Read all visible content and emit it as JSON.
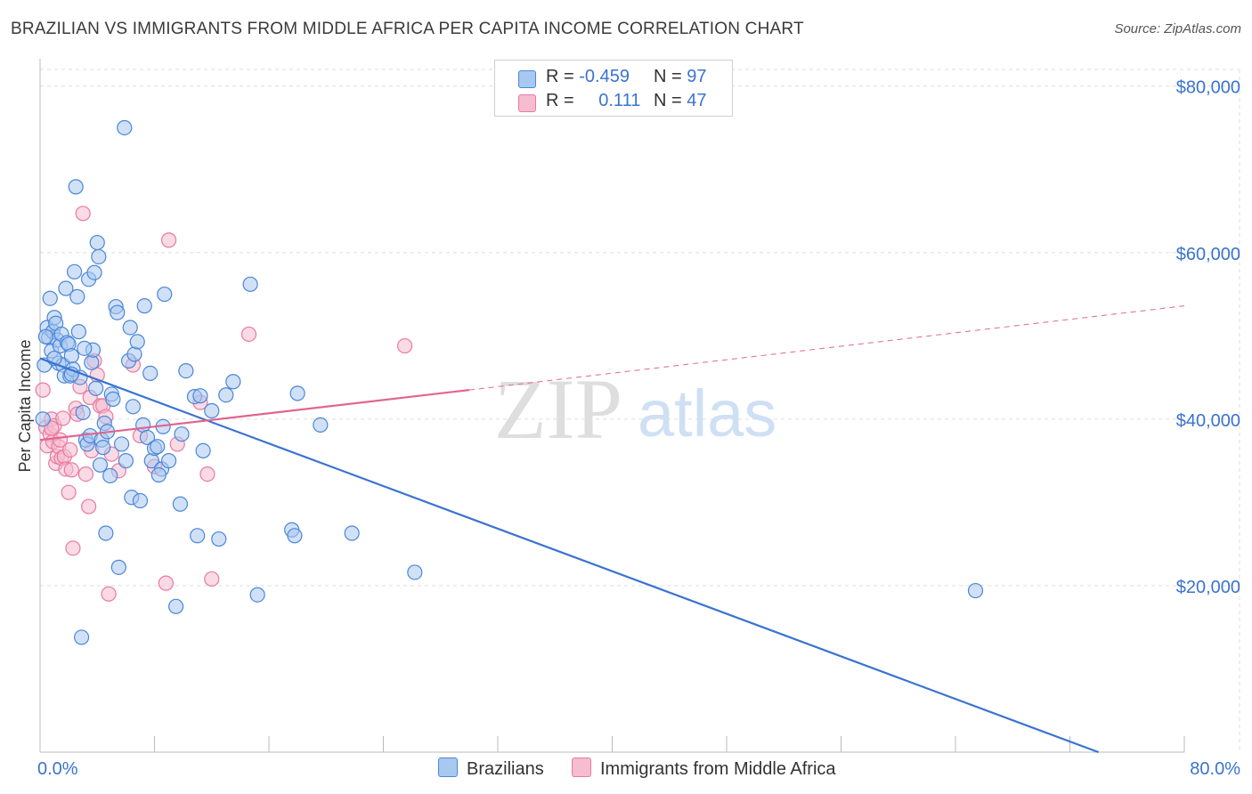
{
  "title": "BRAZILIAN VS IMMIGRANTS FROM MIDDLE AFRICA PER CAPITA INCOME CORRELATION CHART",
  "source": "Source: ZipAtlas.com",
  "watermark": {
    "zip": "ZIP",
    "atlas": "atlas"
  },
  "legend": {
    "r_label": "R =",
    "n_label": "N =",
    "blue": {
      "r": "-0.459",
      "n": "97"
    },
    "pink": {
      "r": "0.111",
      "n": "47"
    }
  },
  "colors": {
    "blue_fill": "#a9c8f0",
    "blue_stroke": "#4a86d8",
    "blue_line": "#3a73d0",
    "pink_fill": "#f6bcd0",
    "pink_stroke": "#e87aa0",
    "pink_line": "#e06590",
    "axis_text": "#3a73d0",
    "grid": "#dddddd"
  },
  "chart_data": {
    "type": "scatter",
    "title": "BRAZILIAN VS IMMIGRANTS FROM MIDDLE AFRICA PER CAPITA INCOME CORRELATION CHART",
    "xlabel": "",
    "ylabel": "Per Capita Income",
    "xlim": [
      0,
      80
    ],
    "ylim": [
      0,
      82000
    ],
    "x_tick_labels": [
      "0.0%",
      "80.0%"
    ],
    "y_ticks": [
      20000,
      40000,
      60000,
      80000
    ],
    "y_tick_labels": [
      "$20,000",
      "$40,000",
      "$60,000",
      "$80,000"
    ],
    "series": [
      {
        "name": "Brazilians",
        "r": -0.459,
        "n": 97,
        "trend": {
          "x": [
            0,
            74
          ],
          "y": [
            47300,
            0
          ]
        },
        "points": [
          [
            0.2,
            40000
          ],
          [
            0.3,
            46500
          ],
          [
            0.5,
            51000
          ],
          [
            0.6,
            49800
          ],
          [
            0.7,
            54500
          ],
          [
            0.8,
            48200
          ],
          [
            0.9,
            50500
          ],
          [
            1.0,
            52200
          ],
          [
            1.1,
            51500
          ],
          [
            1.2,
            49500
          ],
          [
            1.3,
            46700
          ],
          [
            1.4,
            48800
          ],
          [
            1.5,
            50200
          ],
          [
            1.6,
            46500
          ],
          [
            1.7,
            45200
          ],
          [
            1.8,
            55700
          ],
          [
            1.9,
            49200
          ],
          [
            2.0,
            49000
          ],
          [
            2.1,
            45200
          ],
          [
            2.2,
            47600
          ],
          [
            2.3,
            46000
          ],
          [
            2.4,
            57700
          ],
          [
            2.5,
            67900
          ],
          [
            2.6,
            54700
          ],
          [
            2.7,
            50500
          ],
          [
            2.8,
            45000
          ],
          [
            2.9,
            13800
          ],
          [
            3.0,
            40800
          ],
          [
            3.2,
            37500
          ],
          [
            3.3,
            37000
          ],
          [
            3.4,
            56800
          ],
          [
            3.5,
            38000
          ],
          [
            3.6,
            46800
          ],
          [
            3.7,
            48300
          ],
          [
            3.8,
            57600
          ],
          [
            3.9,
            43700
          ],
          [
            4.0,
            61200
          ],
          [
            4.1,
            59500
          ],
          [
            4.2,
            34500
          ],
          [
            4.3,
            37500
          ],
          [
            4.5,
            39500
          ],
          [
            4.6,
            26300
          ],
          [
            4.7,
            38500
          ],
          [
            4.9,
            33200
          ],
          [
            5.0,
            43000
          ],
          [
            5.3,
            53500
          ],
          [
            5.4,
            52800
          ],
          [
            5.5,
            22200
          ],
          [
            5.7,
            37000
          ],
          [
            5.9,
            75000
          ],
          [
            6.0,
            35000
          ],
          [
            6.2,
            47000
          ],
          [
            6.3,
            51000
          ],
          [
            6.4,
            30600
          ],
          [
            6.6,
            47800
          ],
          [
            6.8,
            49300
          ],
          [
            7.0,
            30200
          ],
          [
            7.2,
            39300
          ],
          [
            7.3,
            53600
          ],
          [
            7.5,
            37800
          ],
          [
            7.8,
            35000
          ],
          [
            8.0,
            36500
          ],
          [
            8.2,
            36700
          ],
          [
            8.5,
            34000
          ],
          [
            8.6,
            39100
          ],
          [
            8.7,
            55000
          ],
          [
            9.0,
            35000
          ],
          [
            9.5,
            17500
          ],
          [
            9.8,
            29800
          ],
          [
            10.2,
            45800
          ],
          [
            10.8,
            42700
          ],
          [
            11.0,
            26000
          ],
          [
            11.2,
            42800
          ],
          [
            11.4,
            36200
          ],
          [
            12.5,
            25600
          ],
          [
            13.0,
            42900
          ],
          [
            13.5,
            44500
          ],
          [
            14.7,
            56200
          ],
          [
            15.2,
            18900
          ],
          [
            17.6,
            26700
          ],
          [
            17.8,
            26000
          ],
          [
            18.0,
            43100
          ],
          [
            19.6,
            39300
          ],
          [
            21.8,
            26300
          ],
          [
            26.2,
            21600
          ],
          [
            65.4,
            19400
          ],
          [
            0.4,
            49900
          ],
          [
            1.0,
            47300
          ],
          [
            2.2,
            45400
          ],
          [
            3.1,
            48500
          ],
          [
            4.4,
            36600
          ],
          [
            5.1,
            42400
          ],
          [
            6.5,
            41500
          ],
          [
            7.7,
            45500
          ],
          [
            8.3,
            33300
          ],
          [
            9.9,
            38200
          ],
          [
            12.0,
            41000
          ]
        ]
      },
      {
        "name": "Immigrants from Middle Africa",
        "r": 0.111,
        "n": 47,
        "trend": {
          "x": [
            0,
            30
          ],
          "y": [
            37500,
            43500
          ]
        },
        "trend_extension": {
          "x": [
            30,
            80
          ],
          "y": [
            43500,
            53600
          ]
        },
        "points": [
          [
            0.2,
            43500
          ],
          [
            0.4,
            39000
          ],
          [
            0.5,
            36800
          ],
          [
            0.7,
            38200
          ],
          [
            0.8,
            40000
          ],
          [
            0.9,
            37300
          ],
          [
            1.0,
            39200
          ],
          [
            1.1,
            34700
          ],
          [
            1.2,
            35500
          ],
          [
            1.3,
            36700
          ],
          [
            1.4,
            37500
          ],
          [
            1.5,
            35300
          ],
          [
            1.6,
            40100
          ],
          [
            1.7,
            35500
          ],
          [
            1.8,
            34000
          ],
          [
            2.0,
            31200
          ],
          [
            2.1,
            36300
          ],
          [
            2.2,
            33900
          ],
          [
            2.3,
            24500
          ],
          [
            2.5,
            41300
          ],
          [
            2.6,
            40600
          ],
          [
            2.8,
            43900
          ],
          [
            3.0,
            64700
          ],
          [
            3.2,
            33400
          ],
          [
            3.4,
            29500
          ],
          [
            3.5,
            42600
          ],
          [
            3.6,
            36200
          ],
          [
            3.8,
            47000
          ],
          [
            4.0,
            45300
          ],
          [
            4.2,
            41600
          ],
          [
            4.4,
            41600
          ],
          [
            4.6,
            40300
          ],
          [
            4.8,
            19000
          ],
          [
            5.0,
            35800
          ],
          [
            5.5,
            33800
          ],
          [
            6.5,
            46500
          ],
          [
            7.0,
            38000
          ],
          [
            8.0,
            34300
          ],
          [
            8.8,
            20300
          ],
          [
            9.0,
            61500
          ],
          [
            9.6,
            37000
          ],
          [
            11.2,
            42000
          ],
          [
            11.7,
            33400
          ],
          [
            12.0,
            20800
          ],
          [
            14.6,
            50200
          ],
          [
            25.5,
            48800
          ],
          [
            0.8,
            38900
          ]
        ]
      }
    ]
  }
}
